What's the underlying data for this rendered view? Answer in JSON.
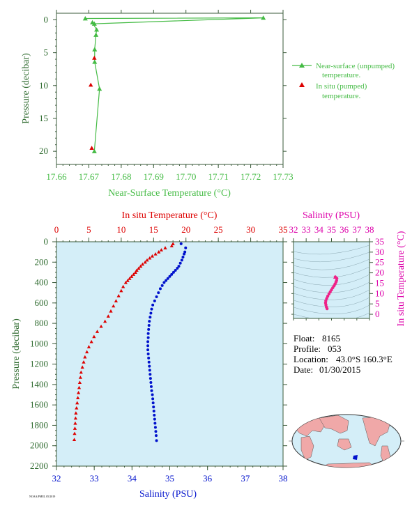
{
  "colors": {
    "green": "#44bb44",
    "dark_green": "#2f6b2f",
    "red": "#dd0000",
    "blue": "#0011cc",
    "magenta": "#dd00aa",
    "pink": "#ee2288",
    "bg_blue": "#d4eef8"
  },
  "chart_data": [
    {
      "type": "line",
      "xlabel": "Near-Surface Temperature (°C)",
      "ylabel": "Pressure (decibar)",
      "xlim": [
        17.66,
        17.73
      ],
      "ylim": [
        22,
        -1
      ],
      "xticks": [
        "17.66",
        "17.67",
        "17.68",
        "17.69",
        "17.70",
        "17.71",
        "17.72",
        "17.73"
      ],
      "yticks": [
        "0",
        "5",
        "10",
        "15",
        "20"
      ],
      "legend": {
        "placement": "right",
        "near_surface": [
          "Near-surface (unpumped)",
          "temperature."
        ],
        "in_situ": [
          "In situ (pumped)",
          "temperature."
        ]
      },
      "series": [
        {
          "name": "Near-surface (unpumped) temperature.",
          "x": [
            17.6689,
            17.7239,
            17.6717,
            17.6711,
            17.6724,
            17.6722,
            17.6718,
            17.6718,
            17.6733,
            17.6717
          ],
          "y": [
            -0.2,
            -0.3,
            0.6,
            0.4,
            1.5,
            2.3,
            4.5,
            6.4,
            10.5,
            20.0
          ]
        },
        {
          "name": "In situ (pumped) temperature.",
          "x": [
            17.6717,
            17.6706,
            17.6709
          ],
          "y": [
            5.8,
            9.9,
            19.5
          ]
        }
      ]
    },
    {
      "type": "scatter",
      "ylabel": "Pressure (decibar)",
      "ylim": [
        2200,
        0
      ],
      "yticks": [
        "0",
        "200",
        "400",
        "600",
        "800",
        "1000",
        "1200",
        "1400",
        "1600",
        "1800",
        "2000",
        "2200"
      ],
      "top_axis": {
        "label": "In situ Temperature (°C)",
        "lim": [
          0,
          35
        ],
        "ticks": [
          "0",
          "5",
          "10",
          "15",
          "20",
          "25",
          "30",
          "35"
        ]
      },
      "bottom_axis": {
        "label": "Salinity (PSU)",
        "lim": [
          32,
          38
        ],
        "ticks": [
          "32",
          "33",
          "34",
          "35",
          "36",
          "37",
          "38"
        ]
      },
      "series": [
        {
          "name": "In situ Temperature (°C)",
          "points": [
            [
              18.0,
              20
            ],
            [
              17.8,
              40
            ],
            [
              16.8,
              60
            ],
            [
              16.2,
              80
            ],
            [
              15.8,
              100
            ],
            [
              15.3,
              120
            ],
            [
              14.8,
              140
            ],
            [
              14.4,
              160
            ],
            [
              14.0,
              180
            ],
            [
              13.7,
              200
            ],
            [
              13.3,
              220
            ],
            [
              13.0,
              240
            ],
            [
              12.7,
              260
            ],
            [
              12.4,
              280
            ],
            [
              12.2,
              300
            ],
            [
              11.9,
              320
            ],
            [
              11.6,
              340
            ],
            [
              11.3,
              360
            ],
            [
              11.0,
              380
            ],
            [
              10.7,
              400
            ],
            [
              10.3,
              440
            ],
            [
              10.0,
              480
            ],
            [
              9.6,
              530
            ],
            [
              9.2,
              580
            ],
            [
              8.8,
              630
            ],
            [
              8.4,
              680
            ],
            [
              8.0,
              730
            ],
            [
              7.5,
              780
            ],
            [
              6.9,
              830
            ],
            [
              6.3,
              880
            ],
            [
              5.8,
              930
            ],
            [
              5.4,
              980
            ],
            [
              5.0,
              1030
            ],
            [
              4.7,
              1080
            ],
            [
              4.4,
              1130
            ],
            [
              4.2,
              1180
            ],
            [
              4.0,
              1230
            ],
            [
              3.8,
              1280
            ],
            [
              3.7,
              1330
            ],
            [
              3.6,
              1380
            ],
            [
              3.5,
              1430
            ],
            [
              3.4,
              1480
            ],
            [
              3.3,
              1530
            ],
            [
              3.2,
              1580
            ],
            [
              3.1,
              1630
            ],
            [
              3.0,
              1680
            ],
            [
              2.95,
              1730
            ],
            [
              2.9,
              1780
            ],
            [
              2.85,
              1830
            ],
            [
              2.8,
              1880
            ],
            [
              2.75,
              1940
            ]
          ]
        },
        {
          "name": "Salinity (PSU)",
          "points": [
            [
              35.3,
              20
            ],
            [
              35.42,
              60
            ],
            [
              35.4,
              100
            ],
            [
              35.38,
              120
            ],
            [
              35.35,
              150
            ],
            [
              35.32,
              180
            ],
            [
              35.28,
              210
            ],
            [
              35.24,
              240
            ],
            [
              35.2,
              260
            ],
            [
              35.15,
              280
            ],
            [
              35.1,
              300
            ],
            [
              35.05,
              320
            ],
            [
              35.0,
              340
            ],
            [
              34.95,
              360
            ],
            [
              34.9,
              380
            ],
            [
              34.85,
              400
            ],
            [
              34.8,
              430
            ],
            [
              34.75,
              460
            ],
            [
              34.7,
              500
            ],
            [
              34.65,
              540
            ],
            [
              34.6,
              580
            ],
            [
              34.55,
              620
            ],
            [
              34.52,
              660
            ],
            [
              34.5,
              700
            ],
            [
              34.48,
              740
            ],
            [
              34.46,
              780
            ],
            [
              34.45,
              820
            ],
            [
              34.44,
              860
            ],
            [
              34.43,
              900
            ],
            [
              34.43,
              940
            ],
            [
              34.42,
              980
            ],
            [
              34.42,
              1020
            ],
            [
              34.42,
              1060
            ],
            [
              34.43,
              1100
            ],
            [
              34.44,
              1140
            ],
            [
              34.45,
              1180
            ],
            [
              34.46,
              1220
            ],
            [
              34.47,
              1260
            ],
            [
              34.48,
              1300
            ],
            [
              34.49,
              1340
            ],
            [
              34.5,
              1380
            ],
            [
              34.51,
              1420
            ],
            [
              34.52,
              1460
            ],
            [
              34.54,
              1500
            ],
            [
              34.55,
              1540
            ],
            [
              34.56,
              1580
            ],
            [
              34.57,
              1620
            ],
            [
              34.58,
              1660
            ],
            [
              34.59,
              1700
            ],
            [
              34.6,
              1740
            ],
            [
              34.61,
              1780
            ],
            [
              34.62,
              1820
            ],
            [
              34.63,
              1860
            ],
            [
              34.64,
              1900
            ],
            [
              34.65,
              1950
            ]
          ]
        }
      ]
    },
    {
      "type": "scatter",
      "xlabel": "Salinity (PSU)",
      "ylabel": "In situ Temperature (°C)",
      "xlim": [
        32,
        38
      ],
      "ylim": [
        -2,
        35
      ],
      "xticks": [
        "32",
        "33",
        "34",
        "35",
        "36",
        "37",
        "38"
      ],
      "yticks": [
        "0",
        "5",
        "10",
        "15",
        "20",
        "25",
        "30",
        "35"
      ],
      "points": [
        [
          34.65,
          2.7
        ],
        [
          34.6,
          3.5
        ],
        [
          34.56,
          4.5
        ],
        [
          34.53,
          5.5
        ],
        [
          34.55,
          6.5
        ],
        [
          34.62,
          7.6
        ],
        [
          34.7,
          8.7
        ],
        [
          34.8,
          9.8
        ],
        [
          34.9,
          10.8
        ],
        [
          35.0,
          11.8
        ],
        [
          35.1,
          12.8
        ],
        [
          35.2,
          13.7
        ],
        [
          35.28,
          14.6
        ],
        [
          35.35,
          15.5
        ],
        [
          35.4,
          16.3
        ],
        [
          35.42,
          17.3
        ],
        [
          35.3,
          18.0
        ]
      ]
    }
  ],
  "info": {
    "float_label": "Float:",
    "float_value": "8165",
    "profile_label": "Profile:",
    "profile_value": "053",
    "location_label": "Location:",
    "location_value": "43.0°S  160.3°E",
    "date_label": "Date:",
    "date_value": "01/30/2015"
  },
  "footer_text": "NOAA/PMEL 05/2019"
}
